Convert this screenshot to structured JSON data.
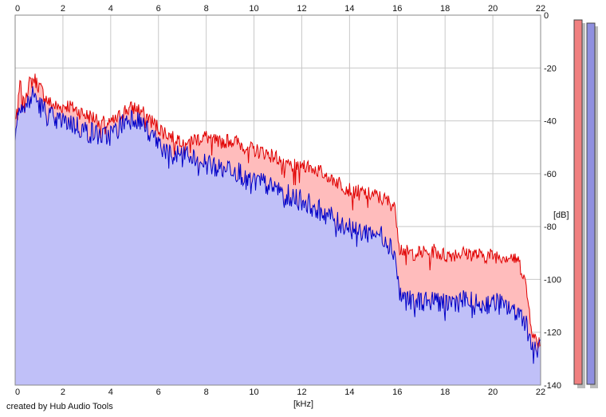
{
  "credit": "created by Hub Audio Tools",
  "colors": {
    "red_line": "#e00000",
    "red_fill": "#ffbcbc",
    "blue_line": "#0000c8",
    "blue_fill": "#c0c0f8",
    "grid": "#c8c8c8",
    "meter_red": "#f08080",
    "meter_blue": "#9090e0"
  },
  "chart_data": {
    "type": "area",
    "xlabel": "[kHz]",
    "ylabel": "[dB]",
    "xlim": [
      0,
      22
    ],
    "ylim": [
      -140,
      0
    ],
    "x_ticks": [
      "0",
      "2",
      "4",
      "6",
      "8",
      "10",
      "12",
      "14",
      "16",
      "18",
      "20",
      "22"
    ],
    "y_ticks": [
      "0",
      "-20",
      "-40",
      "-60",
      "-80",
      "-100",
      "-120",
      "-140"
    ],
    "grid": true,
    "series": [
      {
        "color": "red",
        "x": [
          0,
          0.2,
          0.4,
          0.6,
          0.8,
          1.0,
          1.4,
          1.8,
          2.2,
          2.6,
          3.0,
          3.4,
          3.8,
          4.2,
          4.6,
          5.0,
          5.4,
          5.8,
          6.2,
          6.6,
          7.0,
          7.5,
          8.0,
          8.5,
          9.0,
          9.5,
          10.0,
          10.5,
          11.0,
          11.5,
          12.0,
          12.5,
          13.0,
          13.5,
          14.0,
          14.5,
          15.0,
          15.5,
          15.9,
          16.1,
          16.5,
          17.0,
          17.5,
          18.0,
          18.5,
          19.0,
          19.5,
          20.0,
          20.5,
          21.0,
          21.3,
          21.5,
          21.7,
          22.0
        ],
        "values": [
          -40,
          -27,
          -30,
          -26,
          -24,
          -27,
          -33,
          -35,
          -34,
          -36,
          -38,
          -39,
          -41,
          -40,
          -36,
          -35,
          -37,
          -41,
          -44,
          -46,
          -47,
          -47,
          -46,
          -48,
          -47,
          -49,
          -51,
          -52,
          -54,
          -57,
          -56,
          -58,
          -60,
          -63,
          -66,
          -67,
          -68,
          -70,
          -72,
          -88,
          -90,
          -90,
          -89,
          -91,
          -90,
          -90,
          -91,
          -91,
          -91,
          -92,
          -98,
          -110,
          -122,
          -124
        ]
      },
      {
        "color": "blue",
        "x": [
          0,
          0.2,
          0.4,
          0.6,
          0.8,
          1.0,
          1.4,
          1.8,
          2.2,
          2.6,
          3.0,
          3.4,
          3.8,
          4.2,
          4.6,
          5.0,
          5.4,
          5.8,
          6.2,
          6.6,
          7.0,
          7.5,
          8.0,
          8.5,
          9.0,
          9.5,
          10.0,
          10.5,
          11.0,
          11.5,
          12.0,
          12.5,
          13.0,
          13.5,
          14.0,
          14.5,
          15.0,
          15.5,
          15.9,
          16.1,
          16.5,
          17.0,
          17.5,
          18.0,
          18.5,
          19.0,
          19.5,
          20.0,
          20.5,
          21.0,
          21.3,
          21.5,
          21.7,
          22.0
        ],
        "values": [
          -45,
          -32,
          -36,
          -32,
          -30,
          -34,
          -38,
          -40,
          -40,
          -42,
          -44,
          -45,
          -46,
          -44,
          -40,
          -38,
          -42,
          -46,
          -50,
          -54,
          -52,
          -54,
          -56,
          -58,
          -57,
          -60,
          -63,
          -64,
          -66,
          -68,
          -70,
          -72,
          -75,
          -78,
          -80,
          -82,
          -82,
          -84,
          -90,
          -106,
          -108,
          -108,
          -107,
          -109,
          -108,
          -108,
          -110,
          -108,
          -110,
          -112,
          -114,
          -120,
          -128,
          -125
        ]
      }
    ]
  }
}
